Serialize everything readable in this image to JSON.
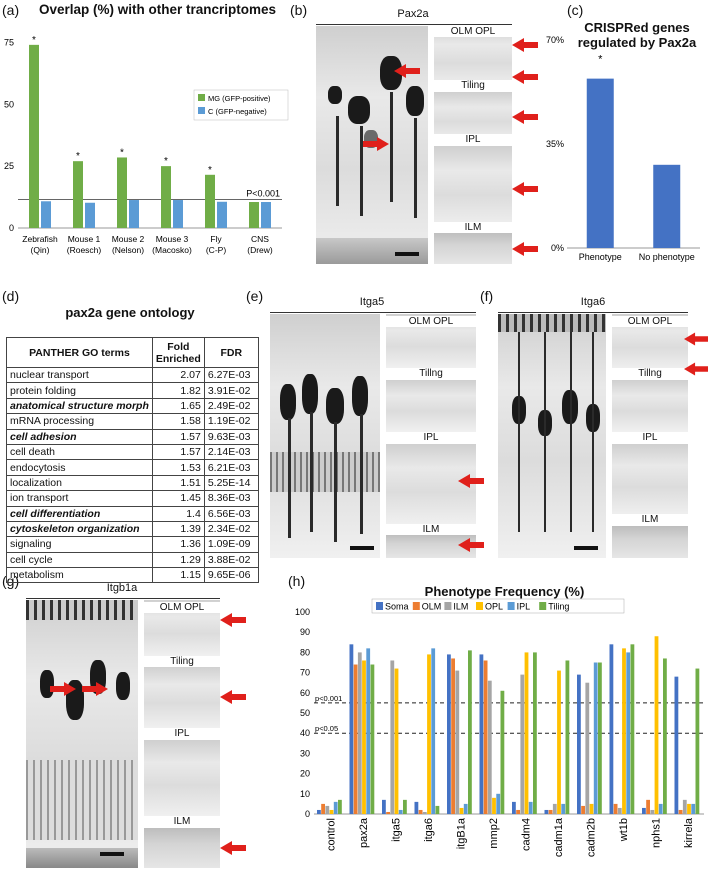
{
  "panels": {
    "a": "(a)",
    "b": "(b)",
    "c": "(c)",
    "d": "(d)",
    "e": "(e)",
    "f": "(f)",
    "g": "(g)",
    "h": "(h)"
  },
  "colors": {
    "mg_green": "#70ad47",
    "c_blue": "#5b9bd5",
    "bar_blue": "#4472c4",
    "soma": "#4472c4",
    "olm": "#ed7d31",
    "ilm": "#a5a5a5",
    "opl": "#ffc000",
    "ipl": "#5b9bd5",
    "tiling": "#70ad47",
    "arrow_red": "#e0201b"
  },
  "images": {
    "b": {
      "title": "Pax2a",
      "subs": [
        "OLM OPL",
        "Tiling",
        "IPL",
        "ILM"
      ]
    },
    "e": {
      "title": "Itga5",
      "subs": [
        "OLM OPL",
        "Tillng",
        "IPL",
        "ILM"
      ]
    },
    "f": {
      "title": "Itga6",
      "subs": [
        "OLM OPL",
        "Tillng",
        "IPL",
        "ILM"
      ]
    },
    "g": {
      "title": "Itgb1a",
      "subs": [
        "OLM OPL",
        "Tiling",
        "IPL",
        "ILM"
      ]
    }
  },
  "go_table": {
    "title": "pax2a gene ontology",
    "headers": [
      "PANTHER GO terms",
      "Fold Enriched",
      "FDR"
    ],
    "rows": [
      {
        "term": "nuclear transport",
        "fold": "2.07",
        "fdr": "6.27E-03",
        "emph": false
      },
      {
        "term": "protein folding",
        "fold": "1.82",
        "fdr": "3.91E-02",
        "emph": false
      },
      {
        "term": "anatomical structure morph",
        "fold": "1.65",
        "fdr": "2.49E-02",
        "emph": true
      },
      {
        "term": "mRNA processing",
        "fold": "1.58",
        "fdr": "1.19E-02",
        "emph": false
      },
      {
        "term": "cell adhesion",
        "fold": "1.57",
        "fdr": "9.63E-03",
        "emph": true
      },
      {
        "term": "cell death",
        "fold": "1.57",
        "fdr": "2.14E-03",
        "emph": false
      },
      {
        "term": "endocytosis",
        "fold": "1.53",
        "fdr": "6.21E-03",
        "emph": false
      },
      {
        "term": "localization",
        "fold": "1.51",
        "fdr": "5.25E-14",
        "emph": false
      },
      {
        "term": "ion transport",
        "fold": "1.45",
        "fdr": "8.36E-03",
        "emph": false
      },
      {
        "term": "cell differentiation",
        "fold": "1.4",
        "fdr": "6.56E-03",
        "emph": true
      },
      {
        "term": "cytoskeleton organization",
        "fold": "1.39",
        "fdr": "2.34E-02",
        "emph": true
      },
      {
        "term": "signaling",
        "fold": "1.36",
        "fdr": "1.09E-09",
        "emph": false
      },
      {
        "term": "cell cycle",
        "fold": "1.29",
        "fdr": "3.88E-02",
        "emph": false
      },
      {
        "term": "metabolism",
        "fold": "1.15",
        "fdr": "9.65E-06",
        "emph": false
      }
    ]
  },
  "chart_data": [
    {
      "id": "a",
      "type": "bar",
      "title": "Overlap (%) with other trancriptomes",
      "categories": [
        "Zebrafish\n(Qin)",
        "Mouse 1\n(Roesch)",
        "Mouse 2\n(Nelson)",
        "Mouse 3\n(Macosko)",
        "Fly\n(C-P)",
        "CNS\n(Drew)"
      ],
      "series": [
        {
          "name": "MG (GFP-positive)",
          "color": "#70ad47",
          "values": [
            74,
            27,
            28.5,
            25,
            21.5,
            10.5
          ]
        },
        {
          "name": "C (GFP-negative)",
          "color": "#5b9bd5",
          "values": [
            10.8,
            10.2,
            11.3,
            11.3,
            10.6,
            10.5
          ]
        }
      ],
      "significant": [
        true,
        true,
        true,
        true,
        true,
        false
      ],
      "star": "*",
      "ylim": [
        0,
        80
      ],
      "yticks": [
        0,
        25,
        50,
        75
      ],
      "threshold": 11.5,
      "threshold_label": "P<0.001",
      "legend": "center-right"
    },
    {
      "id": "c",
      "type": "bar",
      "title": "CRISPRed genes\nregulated by Pax2a",
      "categories": [
        "Phenotype",
        "No phenotype"
      ],
      "values": [
        57,
        28
      ],
      "color": "#4472c4",
      "ylim": [
        0,
        70
      ],
      "yticks": [
        "0%",
        "35%",
        "70%"
      ],
      "yticks_values": [
        0,
        35,
        70
      ],
      "significant": [
        true,
        false
      ],
      "star": "*"
    },
    {
      "id": "h",
      "type": "bar",
      "title": "Phenotype Frequency (%)",
      "categories": [
        "control",
        "pax2a",
        "itga5",
        "itga6",
        "itgB1a",
        "mmp2",
        "cadm4",
        "cadm1a",
        "cadm2b",
        "wt1b",
        "nphs1",
        "kirrela"
      ],
      "series": [
        {
          "name": "Soma",
          "color": "#4472c4",
          "values": [
            2,
            84,
            7,
            6,
            79,
            79,
            6,
            2,
            69,
            84,
            3,
            68
          ]
        },
        {
          "name": "OLM",
          "color": "#ed7d31",
          "values": [
            5,
            74,
            1,
            2,
            77,
            76,
            2,
            2,
            4,
            5,
            7,
            2
          ]
        },
        {
          "name": "ILM",
          "color": "#a5a5a5",
          "values": [
            4,
            80,
            76,
            1,
            71,
            66,
            69,
            5,
            65,
            3,
            2,
            7
          ]
        },
        {
          "name": "OPL",
          "color": "#ffc000",
          "values": [
            2,
            76,
            72,
            79,
            3,
            8,
            80,
            71,
            5,
            82,
            88,
            5
          ]
        },
        {
          "name": "IPL",
          "color": "#5b9bd5",
          "values": [
            6,
            82,
            2,
            82,
            5,
            10,
            6,
            5,
            75,
            80,
            5,
            5
          ]
        },
        {
          "name": "Tiling",
          "color": "#70ad47",
          "values": [
            7,
            74,
            7,
            4,
            81,
            61,
            80,
            76,
            75,
            84,
            77,
            72
          ]
        }
      ],
      "ylim": [
        0,
        100
      ],
      "yticks": [
        0,
        10,
        20,
        30,
        40,
        50,
        60,
        70,
        80,
        90,
        100
      ],
      "thresholds": [
        {
          "value": 55,
          "label": "p<0.001"
        },
        {
          "value": 40,
          "label": "p<0.05"
        }
      ],
      "legend": "top"
    }
  ]
}
